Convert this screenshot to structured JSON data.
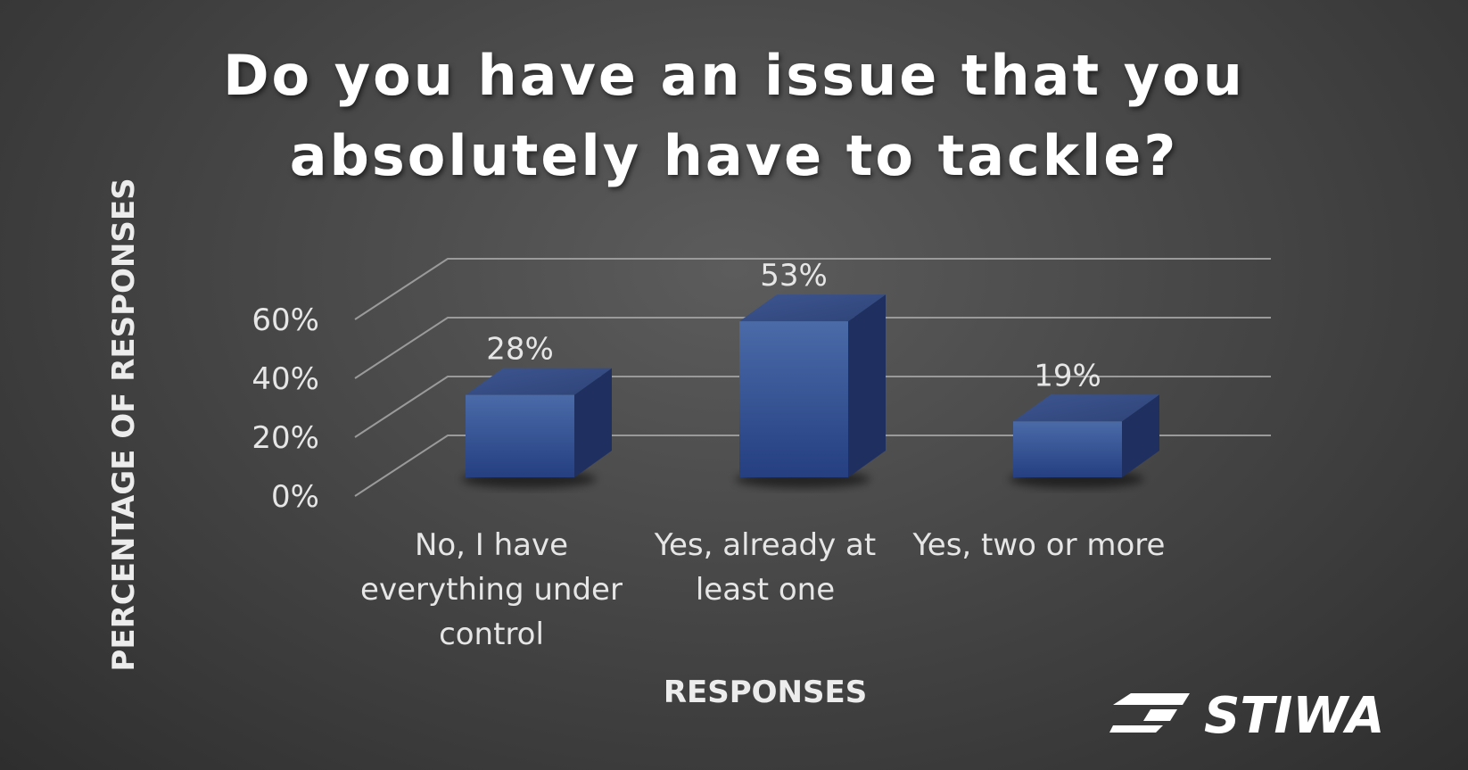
{
  "chart_data": {
    "type": "bar",
    "title_lines": [
      "Do you have an issue that you",
      "absolutely have to tackle?"
    ],
    "categories": [
      [
        "No, I have",
        "everything under",
        "control"
      ],
      [
        "Yes, already at",
        "least one"
      ],
      [
        "Yes, two or more"
      ]
    ],
    "values": [
      28,
      53,
      19
    ],
    "data_labels": [
      "28%",
      "53%",
      "19%"
    ],
    "xlabel": "RESPONSES",
    "ylabel": "PERCENTAGE OF RESPONSES",
    "yticks": [
      "0%",
      "20%",
      "40%",
      "60%"
    ],
    "ytick_values": [
      0,
      20,
      40,
      60
    ],
    "ylim": [
      0,
      60
    ],
    "grid": true,
    "style": "3d-column",
    "bar_color": "#2f4a8c"
  },
  "logo": {
    "text": "STIWA",
    "color": "#ffffff"
  },
  "colors": {
    "background": "#474747",
    "gridline": "#9a9a9a",
    "text": "#e6e6e6"
  }
}
